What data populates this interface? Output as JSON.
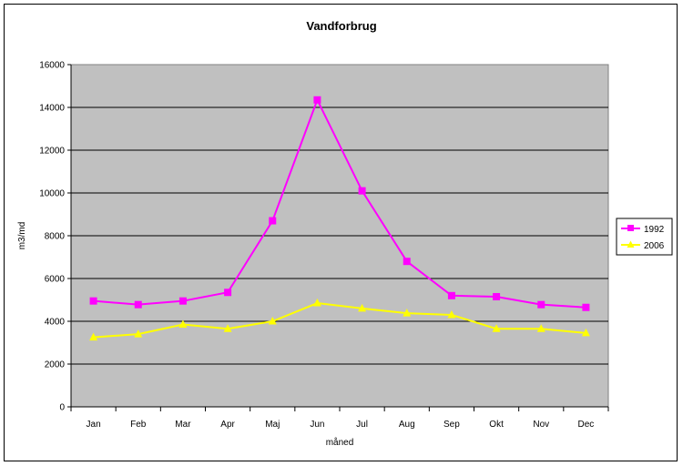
{
  "chart_data": {
    "type": "line",
    "title": "Vandforbrug",
    "xlabel": "måned",
    "ylabel": "m3/md",
    "categories": [
      "Jan",
      "Feb",
      "Mar",
      "Apr",
      "Maj",
      "Jun",
      "Jul",
      "Aug",
      "Sep",
      "Okt",
      "Nov",
      "Dec"
    ],
    "ylim": [
      0,
      16000
    ],
    "yticks": [
      0,
      2000,
      4000,
      6000,
      8000,
      10000,
      12000,
      14000,
      16000
    ],
    "grid": true,
    "legend_position": "right",
    "plot_background": "#c0c0c0",
    "series": [
      {
        "name": "1992",
        "color": "#ff00ff",
        "marker": "square",
        "values": [
          4950,
          4780,
          4950,
          5350,
          8700,
          14350,
          10100,
          6800,
          5200,
          5150,
          4780,
          4650
        ]
      },
      {
        "name": "2006",
        "color": "#ffff00",
        "marker": "triangle",
        "values": [
          3250,
          3400,
          3850,
          3650,
          4000,
          4850,
          4600,
          4380,
          4300,
          3650,
          3650,
          3450
        ]
      }
    ]
  }
}
